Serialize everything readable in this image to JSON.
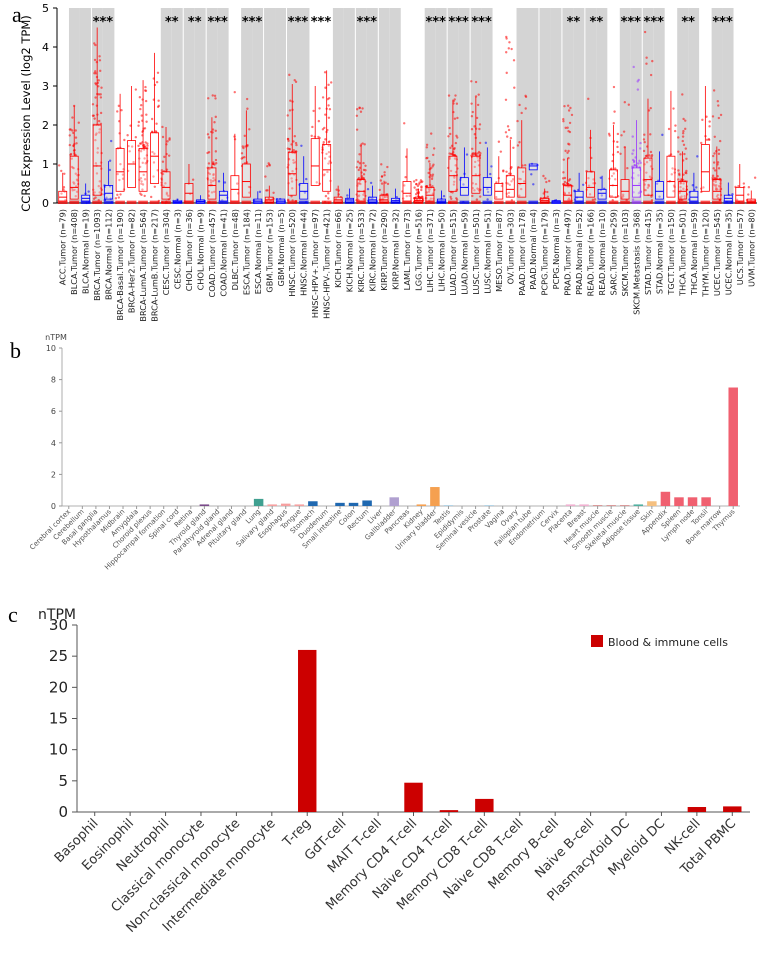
{
  "panels": {
    "a": "a",
    "b": "b",
    "c": "c"
  },
  "chart_data": [
    {
      "type": "box",
      "title": "",
      "ylabel": "CCR8 Expression Level (log2 TPM)",
      "ylim": [
        0,
        5
      ],
      "yticks": [
        0,
        1,
        2,
        3,
        4,
        5
      ],
      "grid": false,
      "categories": [
        "ACC.Tumor (n=79)",
        "BLCA.Tumor (n=408)",
        "BLCA.Normal (n=19)",
        "BRCA.Tumor (n=1093)",
        "BRCA.Normal (n=112)",
        "BRCA-Basal.Tumor (n=190)",
        "BRCA-Her2.Tumor (n=82)",
        "BRCA-LumA.Tumor (n=564)",
        "BRCA-LumB.Tumor (n=217)",
        "CESC.Tumor (n=304)",
        "CESC.Normal (n=3)",
        "CHOL.Tumor (n=36)",
        "CHOL.Normal (n=9)",
        "COAD.Tumor (n=457)",
        "COAD.Normal (n=41)",
        "DLBC.Tumor (n=48)",
        "ESCA.Tumor (n=184)",
        "ESCA.Normal (n=11)",
        "GBM.Tumor (n=153)",
        "GBM.Normal (n=5)",
        "HNSC.Tumor (n=520)",
        "HNSC.Normal (n=44)",
        "HNSC-HPV+.Tumor (n=97)",
        "HNSC-HPV-.Tumor (n=421)",
        "KICH.Tumor (n=66)",
        "KICH.Normal (n=25)",
        "KIRC.Tumor (n=533)",
        "KIRC.Normal (n=72)",
        "KIRP.Tumor (n=290)",
        "KIRP.Normal (n=32)",
        "LAML.Tumor (n=73)",
        "LGG.Tumor (n=516)",
        "LIHC.Tumor (n=371)",
        "LIHC.Normal (n=50)",
        "LUAD.Tumor (n=515)",
        "LUAD.Normal (n=59)",
        "LUSC.Tumor (n=501)",
        "LUSC.Normal (n=51)",
        "MESO.Tumor (n=87)",
        "OV.Tumor (n=303)",
        "PAAD.Tumor (n=178)",
        "PAAD.Normal (n=4)",
        "PCPG.Tumor (n=179)",
        "PCPG.Normal (n=3)",
        "PRAD.Tumor (n=497)",
        "PRAD.Normal (n=52)",
        "READ.Tumor (n=166)",
        "READ.Normal (n=10)",
        "SARC.Tumor (n=259)",
        "SKCM.Tumor (n=103)",
        "SKCM.Metastasis (n=368)",
        "STAD.Tumor (n=415)",
        "STAD.Normal (n=35)",
        "TGCT.Tumor (n=150)",
        "THCA.Tumor (n=501)",
        "THCA.Normal (n=59)",
        "THYM.Tumor (n=120)",
        "UCEC.Tumor (n=545)",
        "UCEC.Normal (n=35)",
        "UCS.Tumor (n=57)",
        "UVM.Tumor (n=80)"
      ],
      "group_colors": {
        "tumor": "#ff0000",
        "normal": "#0000ff",
        "metastasis": "#9933ff"
      },
      "shaded_bands": [
        "BLCA",
        "BRCA",
        "CESC",
        "CHOL",
        "COAD",
        "ESCA",
        "GBM",
        "HNSC",
        "KICH",
        "KIRC",
        "KIRP",
        "LIHC",
        "LUAD",
        "LUSC",
        "PAAD",
        "PCPG",
        "PRAD",
        "READ",
        "SKCM",
        "STAD",
        "THCA",
        "UCEC"
      ],
      "boxes": [
        [
          0.05,
          0.15,
          0.3,
          0.0
        ],
        [
          0.1,
          0.4,
          1.2,
          0.02
        ],
        [
          0.05,
          0.12,
          0.2,
          0.0
        ],
        [
          0.2,
          0.95,
          2.0,
          0.04
        ],
        [
          0.1,
          0.25,
          0.45,
          0.02
        ],
        [
          0.3,
          0.8,
          1.4,
          0.05
        ],
        [
          0.4,
          1.0,
          1.6,
          0.05
        ],
        [
          0.3,
          0.8,
          1.4,
          0.05
        ],
        [
          0.5,
          1.2,
          1.8,
          0.05
        ],
        [
          0.1,
          0.4,
          0.8,
          0.02
        ],
        [
          0.0,
          0.02,
          0.05,
          0.0
        ],
        [
          0.05,
          0.25,
          0.5,
          0.0
        ],
        [
          0.0,
          0.04,
          0.08,
          0.0
        ],
        [
          0.1,
          0.45,
          0.9,
          0.02
        ],
        [
          0.05,
          0.2,
          0.3,
          0.0
        ],
        [
          0.05,
          0.35,
          0.7,
          0.0
        ],
        [
          0.15,
          0.55,
          1.0,
          0.02
        ],
        [
          0.0,
          0.05,
          0.1,
          0.0
        ],
        [
          0.02,
          0.08,
          0.15,
          0.0
        ],
        [
          0.0,
          0.05,
          0.1,
          0.0
        ],
        [
          0.2,
          0.75,
          1.3,
          0.02
        ],
        [
          0.1,
          0.3,
          0.5,
          0.02
        ],
        [
          0.45,
          0.95,
          1.65,
          0.05
        ],
        [
          0.3,
          0.85,
          1.5,
          0.02
        ],
        [
          0.02,
          0.08,
          0.15,
          0.0
        ],
        [
          0.02,
          0.08,
          0.12,
          0.0
        ],
        [
          0.05,
          0.3,
          0.6,
          0.0
        ],
        [
          0.02,
          0.08,
          0.15,
          0.0
        ],
        [
          0.02,
          0.08,
          0.2,
          0.0
        ],
        [
          0.02,
          0.06,
          0.12,
          0.0
        ],
        [
          0.05,
          0.25,
          0.55,
          0.0
        ],
        [
          0.02,
          0.06,
          0.12,
          0.0
        ],
        [
          0.05,
          0.2,
          0.4,
          0.0
        ],
        [
          0.02,
          0.05,
          0.1,
          0.0
        ],
        [
          0.3,
          0.7,
          1.2,
          0.02
        ],
        [
          0.2,
          0.4,
          0.65,
          0.02
        ],
        [
          0.25,
          0.7,
          1.2,
          0.02
        ],
        [
          0.2,
          0.4,
          0.65,
          0.02
        ],
        [
          0.1,
          0.3,
          0.5,
          0.02
        ],
        [
          0.15,
          0.35,
          0.7,
          0.02
        ],
        [
          0.15,
          0.5,
          0.9,
          0.02
        ],
        [
          0.85,
          0.95,
          1.0,
          0.85
        ],
        [
          0.02,
          0.06,
          0.12,
          0.0
        ],
        [
          0.0,
          0.03,
          0.06,
          0.0
        ],
        [
          0.05,
          0.2,
          0.45,
          0.0
        ],
        [
          0.05,
          0.15,
          0.3,
          0.0
        ],
        [
          0.15,
          0.4,
          0.8,
          0.02
        ],
        [
          0.1,
          0.25,
          0.35,
          0.05
        ],
        [
          0.15,
          0.45,
          0.85,
          0.02
        ],
        [
          0.1,
          0.3,
          0.6,
          0.0
        ],
        [
          0.15,
          0.45,
          0.9,
          0.02
        ],
        [
          0.2,
          0.6,
          1.15,
          0.02
        ],
        [
          0.1,
          0.3,
          0.55,
          0.02
        ],
        [
          0.15,
          0.55,
          1.2,
          0.02
        ],
        [
          0.1,
          0.3,
          0.55,
          0.02
        ],
        [
          0.05,
          0.15,
          0.3,
          0.0
        ],
        [
          0.3,
          0.8,
          1.5,
          0.05
        ],
        [
          0.1,
          0.3,
          0.6,
          0.02
        ],
        [
          0.05,
          0.12,
          0.2,
          0.0
        ],
        [
          0.05,
          0.2,
          0.4,
          0.0
        ],
        [
          0.02,
          0.05,
          0.1,
          0.0
        ]
      ],
      "whisker_max": [
        1.2,
        2.5,
        0.5,
        4.5,
        2.2,
        2.8,
        3.0,
        3.2,
        3.9,
        2.2,
        0.1,
        1.0,
        0.2,
        2.9,
        1.3,
        3.6,
        3.0,
        0.3,
        1.2,
        0.1,
        3.5,
        1.5,
        3.0,
        3.4,
        0.5,
        0.4,
        2.6,
        0.8,
        1.1,
        0.5,
        2.2,
        0.6,
        1.8,
        0.5,
        2.8,
        1.6,
        3.2,
        1.7,
        1.6,
        5.0,
        2.9,
        1.0,
        0.8,
        0.1,
        2.6,
        1.1,
        2.7,
        0.7,
        3.2,
        2.8,
        3.6,
        4.4,
        2.1,
        3.7,
        2.8,
        1.2,
        3.0,
        2.9,
        0.7,
        1.0,
        0.7
      ],
      "significance": [
        {
          "between": [
            3,
            4
          ],
          "label": "***"
        },
        {
          "between": [
            9,
            10
          ],
          "label": "**"
        },
        {
          "between": [
            11,
            12
          ],
          "label": "**"
        },
        {
          "between": [
            13,
            14
          ],
          "label": "***"
        },
        {
          "between": [
            16,
            17
          ],
          "label": "***"
        },
        {
          "between": [
            20,
            21
          ],
          "label": "***"
        },
        {
          "between": [
            22,
            23
          ],
          "label": "***"
        },
        {
          "between": [
            26,
            27
          ],
          "label": "***"
        },
        {
          "between": [
            32,
            33
          ],
          "label": "***"
        },
        {
          "between": [
            34,
            35
          ],
          "label": "***"
        },
        {
          "between": [
            36,
            37
          ],
          "label": "***"
        },
        {
          "between": [
            44,
            45
          ],
          "label": "**"
        },
        {
          "between": [
            46,
            47
          ],
          "label": "**"
        },
        {
          "between": [
            49,
            50
          ],
          "label": "***"
        },
        {
          "between": [
            51,
            52
          ],
          "label": "***"
        },
        {
          "between": [
            54,
            55
          ],
          "label": "**"
        },
        {
          "between": [
            57,
            58
          ],
          "label": "***"
        }
      ]
    },
    {
      "type": "bar",
      "title": "",
      "ylabel": "nTPM",
      "ylim": [
        0,
        10
      ],
      "yticks": [
        0,
        2,
        4,
        6,
        8,
        10
      ],
      "categories": [
        "Cerebral cortex",
        "Cerebellum",
        "Basal ganglia",
        "Hypothalamus",
        "Midbrain",
        "Amygdala",
        "Choroid plexus",
        "Hippocampal formation",
        "Spinal cord",
        "Retina",
        "Thyroid gland",
        "Parathyroid gland",
        "Adrenal gland",
        "Pituitary gland",
        "Lung",
        "Salivary gland",
        "Esophagus",
        "Tongue",
        "Stomach",
        "Duodenum",
        "Small intestine",
        "Colon",
        "Rectum",
        "Liver",
        "Gallbladder",
        "Pancreas",
        "Kidney",
        "Urinary bladder",
        "Testis",
        "Epididymis",
        "Seminal vesicle",
        "Prostate",
        "Vagina",
        "Ovary",
        "Fallopian tube",
        "Endometrium",
        "Cervix",
        "Placenta",
        "Breast",
        "Heart muscle",
        "Smooth muscle",
        "Skeletal muscle",
        "Adipose tissue",
        "Skin",
        "Appendix",
        "Spleen",
        "Lymph node",
        "Tonsil",
        "Bone marrow",
        "Thymus"
      ],
      "values": [
        0,
        0,
        0,
        0,
        0,
        0,
        0,
        0,
        0,
        0,
        0.1,
        0,
        0,
        0,
        0.45,
        0.1,
        0.15,
        0.1,
        0.3,
        0,
        0.2,
        0.2,
        0.35,
        0,
        0.55,
        0,
        0.1,
        1.2,
        0.05,
        0,
        0,
        0.05,
        0,
        0,
        0,
        0,
        0,
        0.1,
        0.1,
        0.05,
        0.05,
        0.05,
        0.1,
        0.3,
        0.9,
        0.55,
        0.55,
        0.55,
        0,
        7.5
      ],
      "colors": [
        "#e0c040",
        "#e0c040",
        "#e0c040",
        "#e0c040",
        "#e0c040",
        "#e0c040",
        "#e0c040",
        "#e0c040",
        "#e0c040",
        "#8a8a3a",
        "#7a4a8a",
        "#7a4a8a",
        "#7a4a8a",
        "#7a4a8a",
        "#40a090",
        "#f5a0a0",
        "#f5a0a0",
        "#f5a0a0",
        "#1f68b0",
        "#1f68b0",
        "#1f68b0",
        "#1f68b0",
        "#1f68b0",
        "#1f68b0",
        "#b0a0d0",
        "#b0a0d0",
        "#f5a050",
        "#f5a050",
        "#a0c8e0",
        "#a0c8e0",
        "#a0c8e0",
        "#a0c8e0",
        "#f0b0d0",
        "#f0b0d0",
        "#f0b0d0",
        "#f0b0d0",
        "#f0b0d0",
        "#f0b0d0",
        "#f0b0d0",
        "#d08080",
        "#d08080",
        "#d08080",
        "#50b0a0",
        "#f5c080",
        "#f06070",
        "#f06070",
        "#f06070",
        "#f06070",
        "#f06070",
        "#f06070"
      ]
    },
    {
      "type": "bar",
      "title": "",
      "ylabel": "nTPM",
      "ylim": [
        0,
        30
      ],
      "yticks": [
        0,
        5,
        10,
        15,
        20,
        25,
        30
      ],
      "legend": {
        "placement": "top-right",
        "entries": [
          "Blood & immune cells"
        ],
        "color": "#cc0000"
      },
      "categories": [
        "Basophil",
        "Eosinophil",
        "Neutrophil",
        "Classical monocyte",
        "Non-classical monocyte",
        "Intermediate monocyte",
        "T-reg",
        "GdT-cell",
        "MAIT T-cell",
        "Memory CD4 T-cell",
        "Naive CD4 T-cell",
        "Memory CD8 T-cell",
        "Naive CD8 T-cell",
        "Memory B-cell",
        "Naive B-cell",
        "Plasmacytoid DC",
        "Myeloid DC",
        "NK-cell",
        "Total PBMC"
      ],
      "values": [
        0,
        0,
        0,
        0,
        0,
        0,
        26,
        0,
        0,
        4.7,
        0.3,
        2.1,
        0,
        0,
        0,
        0,
        0,
        0.8,
        0.9
      ]
    }
  ]
}
